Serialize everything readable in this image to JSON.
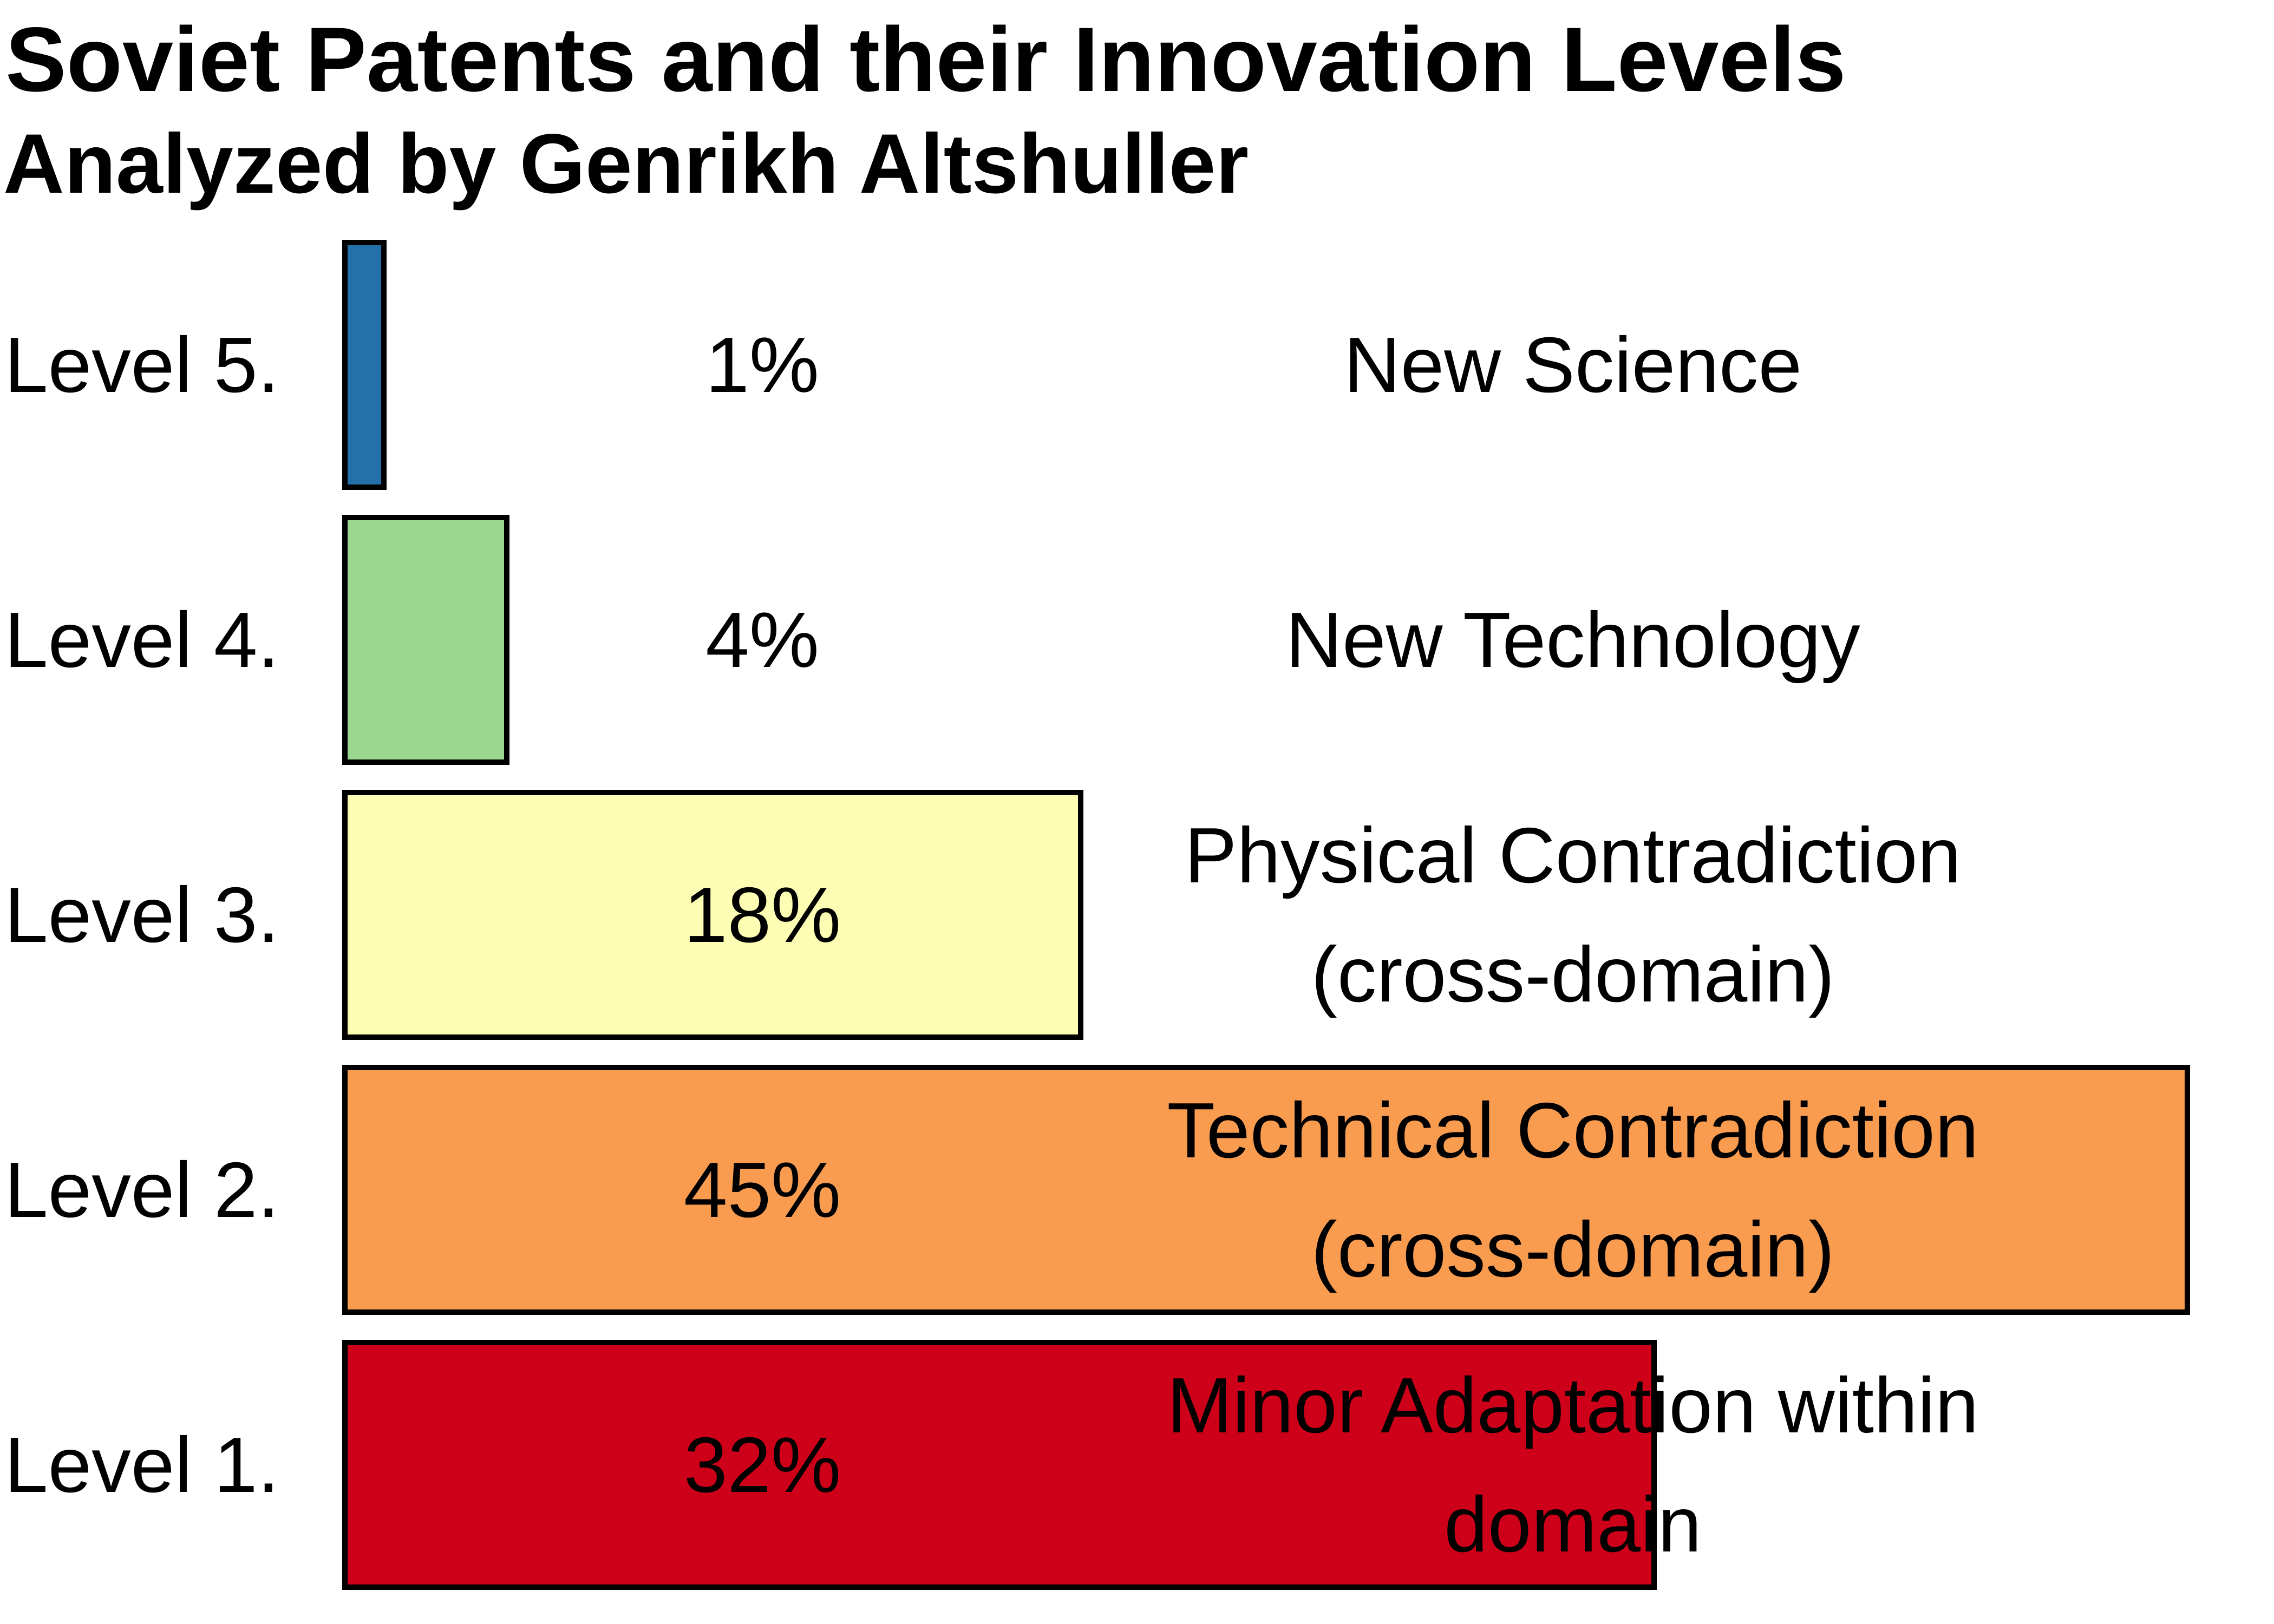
{
  "title": "Soviet Patents and their Innovation Levels",
  "subtitle": "Analyzed by Genrikh Altshuller",
  "chart_data": {
    "type": "bar",
    "orientation": "horizontal",
    "title": "Soviet Patents and their Innovation Levels",
    "subtitle": "Analyzed by Genrikh Altshuller",
    "categories": [
      "Level 5.",
      "Level 4.",
      "Level 3.",
      "Level 2.",
      "Level 1."
    ],
    "values": [
      1,
      4,
      18,
      45,
      32
    ],
    "value_unit": "%",
    "value_labels": [
      "1%",
      "4%",
      "18%",
      "45%",
      "32%"
    ],
    "descriptions": [
      [
        "New Science"
      ],
      [
        "New Technology"
      ],
      [
        "Physical Contradiction",
        "(cross-domain)"
      ],
      [
        "Technical Contradiction",
        "(cross-domain)"
      ],
      [
        "Minor Adaptation within",
        "domain"
      ]
    ],
    "bar_colors": [
      "#2470A8",
      "#9BD78F",
      "#FDFDB3",
      "#F99C50",
      "#CE0019"
    ],
    "bar_border_color": "#000000",
    "background_color": "#FFFFFF",
    "text_color": "#000000",
    "xlim_percent": [
      0,
      46
    ],
    "grid": false,
    "legend": false
  }
}
